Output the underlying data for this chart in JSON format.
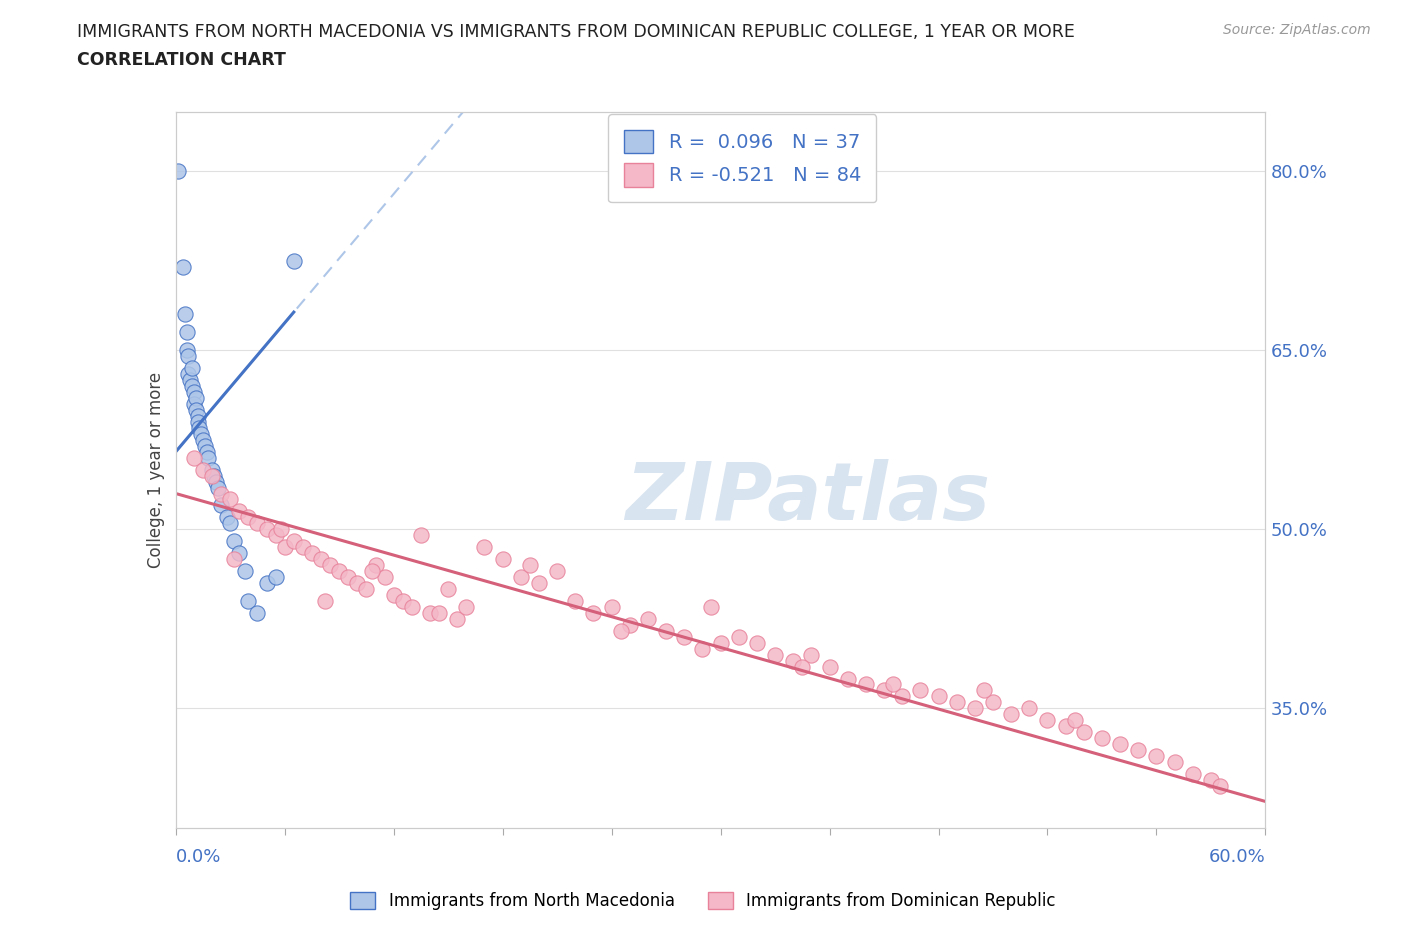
{
  "title_line1": "IMMIGRANTS FROM NORTH MACEDONIA VS IMMIGRANTS FROM DOMINICAN REPUBLIC COLLEGE, 1 YEAR OR MORE",
  "title_line2": "CORRELATION CHART",
  "source_text": "Source: ZipAtlas.com",
  "ylabel": "College, 1 year or more",
  "right_yticks": [
    35.0,
    50.0,
    65.0,
    80.0
  ],
  "legend_label_blue": "Immigrants from North Macedonia",
  "legend_label_pink": "Immigrants from Dominican Republic",
  "R_blue": 0.096,
  "N_blue": 37,
  "R_pink": -0.521,
  "N_pink": 84,
  "blue_scatter_x": [
    0.15,
    0.4,
    0.5,
    0.6,
    0.6,
    0.7,
    0.7,
    0.8,
    0.9,
    0.9,
    1.0,
    1.0,
    1.1,
    1.1,
    1.2,
    1.2,
    1.3,
    1.4,
    1.5,
    1.6,
    1.7,
    1.8,
    2.0,
    2.1,
    2.2,
    2.3,
    2.5,
    2.8,
    3.0,
    3.2,
    3.5,
    3.8,
    4.0,
    4.5,
    5.0,
    5.5,
    6.5
  ],
  "blue_scatter_y": [
    80.0,
    72.0,
    68.0,
    66.5,
    65.0,
    64.5,
    63.0,
    62.5,
    62.0,
    63.5,
    61.5,
    60.5,
    61.0,
    60.0,
    59.5,
    59.0,
    58.5,
    58.0,
    57.5,
    57.0,
    56.5,
    56.0,
    55.0,
    54.5,
    54.0,
    53.5,
    52.0,
    51.0,
    50.5,
    49.0,
    48.0,
    46.5,
    44.0,
    43.0,
    45.5,
    46.0,
    72.5
  ],
  "pink_scatter_x": [
    1.0,
    1.5,
    2.0,
    2.5,
    3.0,
    3.5,
    4.0,
    4.5,
    5.0,
    5.5,
    6.0,
    6.5,
    7.0,
    7.5,
    8.0,
    8.5,
    9.0,
    9.5,
    10.0,
    10.5,
    11.0,
    11.5,
    12.0,
    12.5,
    13.0,
    13.5,
    14.0,
    15.0,
    15.5,
    16.0,
    17.0,
    18.0,
    19.0,
    20.0,
    21.0,
    22.0,
    23.0,
    24.0,
    25.0,
    26.0,
    27.0,
    28.0,
    29.0,
    30.0,
    31.0,
    32.0,
    33.0,
    34.0,
    35.0,
    36.0,
    37.0,
    38.0,
    39.0,
    40.0,
    41.0,
    42.0,
    43.0,
    44.0,
    45.0,
    46.0,
    47.0,
    48.0,
    49.0,
    50.0,
    51.0,
    52.0,
    53.0,
    54.0,
    55.0,
    56.0,
    57.0,
    3.2,
    5.8,
    8.2,
    10.8,
    14.5,
    19.5,
    24.5,
    29.5,
    34.5,
    39.5,
    44.5,
    49.5,
    57.5
  ],
  "pink_scatter_y": [
    56.0,
    55.0,
    54.5,
    53.0,
    52.5,
    51.5,
    51.0,
    50.5,
    50.0,
    49.5,
    48.5,
    49.0,
    48.5,
    48.0,
    47.5,
    47.0,
    46.5,
    46.0,
    45.5,
    45.0,
    47.0,
    46.0,
    44.5,
    44.0,
    43.5,
    49.5,
    43.0,
    45.0,
    42.5,
    43.5,
    48.5,
    47.5,
    46.0,
    45.5,
    46.5,
    44.0,
    43.0,
    43.5,
    42.0,
    42.5,
    41.5,
    41.0,
    40.0,
    40.5,
    41.0,
    40.5,
    39.5,
    39.0,
    39.5,
    38.5,
    37.5,
    37.0,
    36.5,
    36.0,
    36.5,
    36.0,
    35.5,
    35.0,
    35.5,
    34.5,
    35.0,
    34.0,
    33.5,
    33.0,
    32.5,
    32.0,
    31.5,
    31.0,
    30.5,
    29.5,
    29.0,
    47.5,
    50.0,
    44.0,
    46.5,
    43.0,
    47.0,
    41.5,
    43.5,
    38.5,
    37.0,
    36.5,
    34.0,
    28.5
  ],
  "background_color": "#ffffff",
  "blue_scatter_color": "#aec6e8",
  "blue_scatter_edge": "#4472c4",
  "pink_scatter_color": "#f4b8c8",
  "pink_scatter_edge": "#e8829a",
  "trend_blue_solid_color": "#4472c4",
  "trend_blue_dashed_color": "#aec6e8",
  "trend_pink_color": "#d4607a",
  "watermark_color": "#d8e4f0",
  "title_color": "#222222",
  "axis_label_color": "#4472c4",
  "grid_color": "#e0e0e0",
  "xlim": [
    0,
    60
  ],
  "ylim": [
    25,
    85
  ],
  "blue_trend_x_end": 6.5,
  "blue_trend_intercept": 56.5,
  "blue_trend_slope": 1.8,
  "blue_dashed_intercept": 56.5,
  "blue_dashed_slope": 1.8,
  "pink_trend_intercept": 53.0,
  "pink_trend_slope": -0.43
}
